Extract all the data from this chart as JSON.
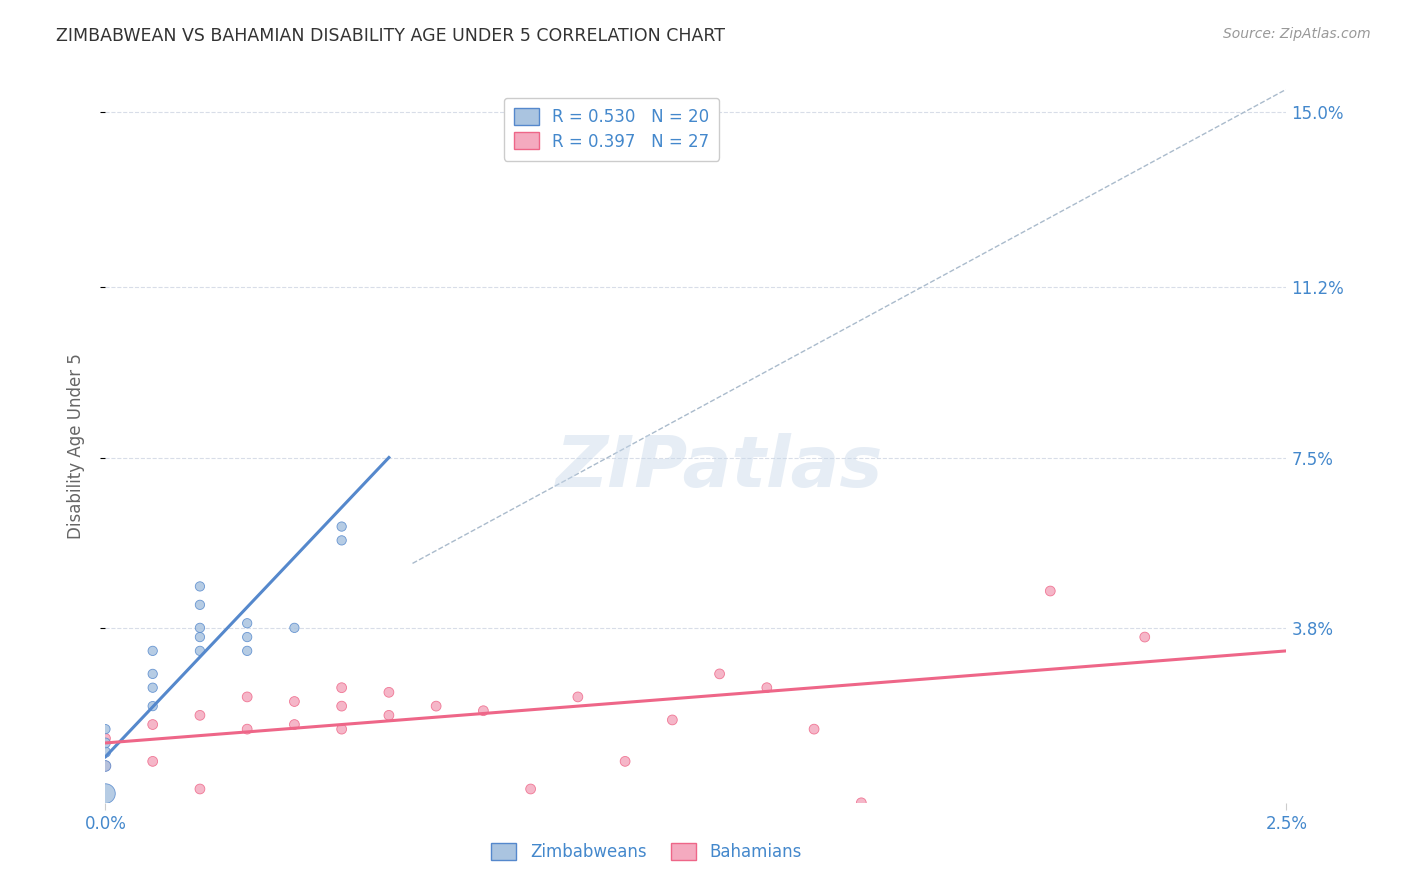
{
  "title": "ZIMBABWEAN VS BAHAMIAN DISABILITY AGE UNDER 5 CORRELATION CHART",
  "source": "Source: ZipAtlas.com",
  "ylabel": "Disability Age Under 5",
  "xlim": [
    0.0,
    0.025
  ],
  "ylim": [
    0.0,
    0.155
  ],
  "ytick_labels": [
    "3.8%",
    "7.5%",
    "11.2%",
    "15.0%"
  ],
  "ytick_values": [
    0.038,
    0.075,
    0.112,
    0.15
  ],
  "xtick_labels": [
    "0.0%",
    "2.5%"
  ],
  "xtick_values": [
    0.0,
    0.025
  ],
  "legend_blue_r": "R = 0.530",
  "legend_blue_n": "N = 20",
  "legend_pink_r": "R = 0.397",
  "legend_pink_n": "N = 27",
  "legend_label_blue": "Zimbabweans",
  "legend_label_pink": "Bahamians",
  "background_color": "#ffffff",
  "grid_color": "#d8dde8",
  "blue_line_color": "#5588cc",
  "pink_line_color": "#ee6688",
  "blue_fill": "#aac4e0",
  "pink_fill": "#f4aabf",
  "blue_edge": "#5588cc",
  "pink_edge": "#ee6688",
  "title_color": "#333333",
  "axis_label_color": "#666666",
  "tick_label_color": "#4488cc",
  "source_color": "#999999",
  "ref_line_color": "#aabbcc",
  "blue_points_x": [
    0.0,
    0.0,
    0.0,
    0.0,
    0.001,
    0.001,
    0.001,
    0.001,
    0.002,
    0.002,
    0.002,
    0.002,
    0.002,
    0.003,
    0.003,
    0.003,
    0.004,
    0.005,
    0.005,
    0.0
  ],
  "blue_points_y": [
    0.008,
    0.011,
    0.013,
    0.016,
    0.021,
    0.025,
    0.028,
    0.033,
    0.033,
    0.036,
    0.038,
    0.043,
    0.047,
    0.033,
    0.036,
    0.039,
    0.038,
    0.057,
    0.06,
    0.002
  ],
  "blue_sizes": [
    60,
    55,
    50,
    45,
    45,
    45,
    45,
    45,
    45,
    45,
    45,
    45,
    45,
    45,
    45,
    45,
    45,
    45,
    45,
    200
  ],
  "pink_points_x": [
    0.0,
    0.0,
    0.001,
    0.001,
    0.002,
    0.002,
    0.003,
    0.003,
    0.004,
    0.004,
    0.005,
    0.005,
    0.005,
    0.006,
    0.006,
    0.007,
    0.008,
    0.009,
    0.01,
    0.011,
    0.012,
    0.013,
    0.014,
    0.015,
    0.016,
    0.02,
    0.022
  ],
  "pink_points_y": [
    0.008,
    0.014,
    0.009,
    0.017,
    0.003,
    0.019,
    0.016,
    0.023,
    0.017,
    0.022,
    0.016,
    0.021,
    0.025,
    0.019,
    0.024,
    0.021,
    0.02,
    0.003,
    0.023,
    0.009,
    0.018,
    0.028,
    0.025,
    0.016,
    0.0,
    0.046,
    0.036
  ],
  "pink_sizes": [
    50,
    50,
    50,
    50,
    50,
    50,
    50,
    50,
    50,
    50,
    50,
    50,
    50,
    50,
    50,
    50,
    50,
    50,
    50,
    50,
    50,
    50,
    50,
    50,
    50,
    50,
    50
  ],
  "blue_line_x": [
    0.0,
    0.006
  ],
  "blue_line_y": [
    0.01,
    0.075
  ],
  "pink_line_x": [
    0.0,
    0.025
  ],
  "pink_line_y": [
    0.013,
    0.033
  ],
  "ref_line_x": [
    0.0065,
    0.025
  ],
  "ref_line_y": [
    0.052,
    0.155
  ]
}
